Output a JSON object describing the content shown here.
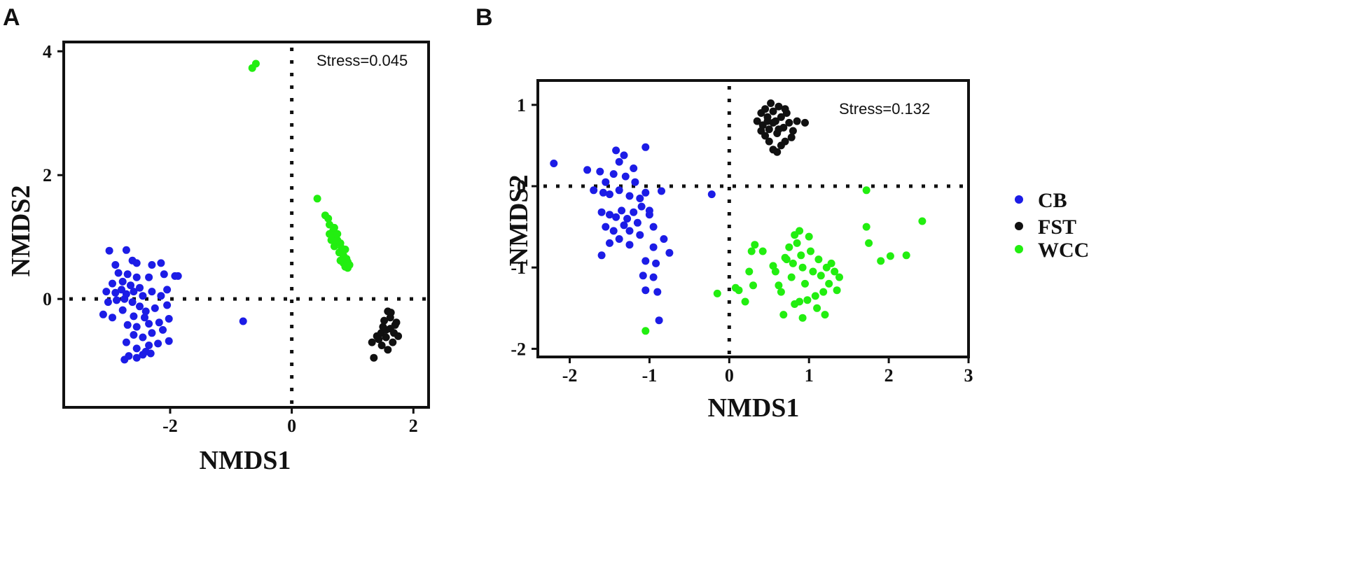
{
  "colors": {
    "CB": "#1c1ce6",
    "FST": "#111111",
    "WCC": "#22ee10"
  },
  "legend": [
    {
      "label": "CB",
      "group": "CB"
    },
    {
      "label": "FST",
      "group": "FST"
    },
    {
      "label": "WCC",
      "group": "WCC"
    }
  ],
  "chart_data": [
    {
      "type": "scatter",
      "panel_label": "A",
      "xlabel": "NMDS1",
      "ylabel": "NMDS2",
      "xlim": [
        -3.75,
        2.25
      ],
      "ylim": [
        -1.75,
        4.15
      ],
      "xticks": [
        -2,
        0,
        2
      ],
      "xtick_labels": [
        "-2",
        "0",
        "2"
      ],
      "yticks": [
        0,
        2,
        4
      ],
      "ytick_labels": [
        "0",
        "2",
        "4"
      ],
      "annotation": "Stress=0.045",
      "reference_lines": {
        "x": 0,
        "y": 0
      },
      "series": [
        {
          "name": "CB",
          "points": [
            [
              -3.0,
              0.78
            ],
            [
              -2.72,
              0.79
            ],
            [
              -2.9,
              0.55
            ],
            [
              -2.62,
              0.62
            ],
            [
              -2.55,
              0.58
            ],
            [
              -2.3,
              0.55
            ],
            [
              -2.15,
              0.58
            ],
            [
              -2.85,
              0.42
            ],
            [
              -2.7,
              0.4
            ],
            [
              -2.55,
              0.35
            ],
            [
              -2.35,
              0.35
            ],
            [
              -2.1,
              0.4
            ],
            [
              -1.87,
              0.37
            ],
            [
              -1.92,
              0.37
            ],
            [
              -2.95,
              0.25
            ],
            [
              -2.78,
              0.28
            ],
            [
              -2.65,
              0.22
            ],
            [
              -2.5,
              0.18
            ],
            [
              -3.05,
              0.12
            ],
            [
              -2.9,
              0.1
            ],
            [
              -2.8,
              0.15
            ],
            [
              -2.72,
              0.08
            ],
            [
              -2.6,
              0.12
            ],
            [
              -2.45,
              0.05
            ],
            [
              -2.3,
              0.12
            ],
            [
              -2.15,
              0.05
            ],
            [
              -2.05,
              0.15
            ],
            [
              -3.02,
              -0.05
            ],
            [
              -2.88,
              -0.02
            ],
            [
              -2.75,
              0.0
            ],
            [
              -2.62,
              -0.05
            ],
            [
              -2.5,
              -0.12
            ],
            [
              -3.1,
              -0.25
            ],
            [
              -2.95,
              -0.3
            ],
            [
              -2.78,
              -0.18
            ],
            [
              -2.6,
              -0.28
            ],
            [
              -2.4,
              -0.2
            ],
            [
              -2.25,
              -0.15
            ],
            [
              -2.05,
              -0.1
            ],
            [
              -2.42,
              -0.3
            ],
            [
              -2.7,
              -0.42
            ],
            [
              -2.55,
              -0.45
            ],
            [
              -2.35,
              -0.4
            ],
            [
              -2.18,
              -0.38
            ],
            [
              -2.02,
              -0.32
            ],
            [
              -2.6,
              -0.58
            ],
            [
              -2.45,
              -0.62
            ],
            [
              -2.3,
              -0.55
            ],
            [
              -2.12,
              -0.5
            ],
            [
              -2.02,
              -0.68
            ],
            [
              -2.72,
              -0.7
            ],
            [
              -2.55,
              -0.8
            ],
            [
              -2.35,
              -0.75
            ],
            [
              -2.2,
              -0.72
            ],
            [
              -2.68,
              -0.92
            ],
            [
              -2.45,
              -0.9
            ],
            [
              -2.32,
              -0.88
            ],
            [
              -2.75,
              -0.98
            ],
            [
              -2.55,
              -0.95
            ],
            [
              -2.4,
              -0.85
            ],
            [
              -0.8,
              -0.36
            ]
          ]
        },
        {
          "name": "FST",
          "points": [
            [
              1.35,
              -0.95
            ],
            [
              1.32,
              -0.7
            ],
            [
              1.4,
              -0.6
            ],
            [
              1.47,
              -0.55
            ],
            [
              1.55,
              -0.5
            ],
            [
              1.62,
              -0.48
            ],
            [
              1.7,
              -0.42
            ],
            [
              1.58,
              -0.2
            ],
            [
              1.52,
              -0.35
            ],
            [
              1.62,
              -0.3
            ],
            [
              1.68,
              -0.55
            ],
            [
              1.75,
              -0.6
            ],
            [
              1.48,
              -0.75
            ],
            [
              1.58,
              -0.82
            ],
            [
              1.66,
              -0.7
            ],
            [
              1.43,
              -0.65
            ],
            [
              1.55,
              -0.62
            ],
            [
              1.63,
              -0.22
            ],
            [
              1.72,
              -0.38
            ],
            [
              1.5,
              -0.45
            ]
          ]
        },
        {
          "name": "WCC",
          "points": [
            [
              -0.65,
              3.73
            ],
            [
              -0.59,
              3.8
            ],
            [
              0.42,
              1.62
            ],
            [
              0.55,
              1.35
            ],
            [
              0.6,
              1.3
            ],
            [
              0.62,
              1.2
            ],
            [
              0.68,
              1.1
            ],
            [
              0.7,
              1.15
            ],
            [
              0.62,
              1.05
            ],
            [
              0.72,
              1.0
            ],
            [
              0.75,
              0.95
            ],
            [
              0.8,
              0.9
            ],
            [
              0.7,
              0.85
            ],
            [
              0.82,
              0.82
            ],
            [
              0.88,
              0.8
            ],
            [
              0.85,
              0.7
            ],
            [
              0.78,
              0.75
            ],
            [
              0.9,
              0.65
            ],
            [
              0.92,
              0.6
            ],
            [
              0.85,
              0.58
            ],
            [
              0.88,
              0.52
            ],
            [
              0.92,
              0.5
            ],
            [
              0.8,
              0.62
            ],
            [
              0.65,
              0.95
            ],
            [
              0.75,
              1.05
            ],
            [
              0.95,
              0.55
            ]
          ]
        }
      ]
    },
    {
      "type": "scatter",
      "panel_label": "B",
      "xlabel": "NMDS1",
      "ylabel": "NMDS2",
      "xlim": [
        -2.4,
        3.0
      ],
      "ylim": [
        -2.1,
        1.3
      ],
      "xticks": [
        -2,
        -1,
        0,
        1,
        2,
        3
      ],
      "xtick_labels": [
        "-2",
        "-1",
        "0",
        "1",
        "2",
        "3"
      ],
      "yticks": [
        -2,
        -1,
        0,
        1
      ],
      "ytick_labels": [
        "-2",
        "-1",
        "0",
        "1"
      ],
      "annotation": "Stress=0.132",
      "reference_lines": {
        "x": 0,
        "y": 0
      },
      "series": [
        {
          "name": "CB",
          "points": [
            [
              -2.2,
              0.28
            ],
            [
              -1.78,
              0.2
            ],
            [
              -1.42,
              0.44
            ],
            [
              -1.38,
              0.3
            ],
            [
              -1.2,
              0.22
            ],
            [
              -1.05,
              0.48
            ],
            [
              -1.62,
              0.18
            ],
            [
              -1.55,
              0.05
            ],
            [
              -1.45,
              0.15
            ],
            [
              -1.3,
              0.12
            ],
            [
              -1.18,
              0.05
            ],
            [
              -1.58,
              -0.08
            ],
            [
              -1.5,
              -0.1
            ],
            [
              -1.38,
              -0.05
            ],
            [
              -1.25,
              -0.12
            ],
            [
              -1.12,
              -0.15
            ],
            [
              -1.05,
              -0.08
            ],
            [
              -0.85,
              -0.06
            ],
            [
              -1.6,
              -0.32
            ],
            [
              -1.5,
              -0.35
            ],
            [
              -1.42,
              -0.38
            ],
            [
              -1.35,
              -0.3
            ],
            [
              -1.28,
              -0.4
            ],
            [
              -1.2,
              -0.32
            ],
            [
              -1.1,
              -0.25
            ],
            [
              -1.0,
              -0.35
            ],
            [
              -1.55,
              -0.5
            ],
            [
              -1.45,
              -0.55
            ],
            [
              -1.32,
              -0.48
            ],
            [
              -1.25,
              -0.55
            ],
            [
              -1.15,
              -0.45
            ],
            [
              -1.0,
              -0.3
            ],
            [
              -0.95,
              -0.5
            ],
            [
              -1.5,
              -0.7
            ],
            [
              -1.38,
              -0.65
            ],
            [
              -1.25,
              -0.72
            ],
            [
              -1.12,
              -0.6
            ],
            [
              -0.95,
              -0.75
            ],
            [
              -0.82,
              -0.65
            ],
            [
              -0.75,
              -0.82
            ],
            [
              -1.6,
              -0.85
            ],
            [
              -1.05,
              -0.92
            ],
            [
              -0.92,
              -0.95
            ],
            [
              -1.08,
              -1.1
            ],
            [
              -0.95,
              -1.12
            ],
            [
              -1.05,
              -1.28
            ],
            [
              -0.9,
              -1.3
            ],
            [
              -0.88,
              -1.65
            ],
            [
              -0.22,
              -0.1
            ],
            [
              -1.7,
              -0.05
            ],
            [
              -1.32,
              0.38
            ]
          ]
        },
        {
          "name": "FST",
          "points": [
            [
              0.35,
              0.8
            ],
            [
              0.4,
              0.9
            ],
            [
              0.42,
              0.75
            ],
            [
              0.45,
              0.95
            ],
            [
              0.48,
              0.85
            ],
            [
              0.5,
              0.7
            ],
            [
              0.52,
              1.02
            ],
            [
              0.55,
              0.92
            ],
            [
              0.58,
              0.8
            ],
            [
              0.6,
              0.65
            ],
            [
              0.62,
              0.98
            ],
            [
              0.65,
              0.85
            ],
            [
              0.68,
              0.72
            ],
            [
              0.7,
              0.55
            ],
            [
              0.72,
              0.9
            ],
            [
              0.75,
              0.78
            ],
            [
              0.78,
              0.6
            ],
            [
              0.8,
              0.68
            ],
            [
              0.85,
              0.8
            ],
            [
              0.5,
              0.55
            ],
            [
              0.55,
              0.45
            ],
            [
              0.6,
              0.42
            ],
            [
              0.4,
              0.68
            ],
            [
              0.45,
              0.62
            ],
            [
              0.65,
              0.5
            ],
            [
              0.7,
              0.95
            ],
            [
              0.95,
              0.78
            ],
            [
              0.55,
              0.78
            ],
            [
              0.62,
              0.7
            ],
            [
              0.48,
              0.8
            ]
          ]
        },
        {
          "name": "WCC",
          "points": [
            [
              -0.15,
              -1.32
            ],
            [
              0.08,
              -1.25
            ],
            [
              0.12,
              -1.28
            ],
            [
              0.2,
              -1.42
            ],
            [
              0.25,
              -1.05
            ],
            [
              0.3,
              -1.22
            ],
            [
              0.32,
              -0.72
            ],
            [
              0.28,
              -0.8
            ],
            [
              0.42,
              -0.8
            ],
            [
              0.55,
              -0.98
            ],
            [
              0.58,
              -1.05
            ],
            [
              0.62,
              -1.22
            ],
            [
              0.65,
              -1.3
            ],
            [
              0.68,
              -1.58
            ],
            [
              0.7,
              -0.88
            ],
            [
              0.75,
              -0.75
            ],
            [
              0.78,
              -1.12
            ],
            [
              0.8,
              -0.95
            ],
            [
              0.82,
              -0.6
            ],
            [
              0.85,
              -0.7
            ],
            [
              0.88,
              -0.55
            ],
            [
              0.9,
              -0.85
            ],
            [
              0.92,
              -1.0
            ],
            [
              0.95,
              -1.2
            ],
            [
              0.98,
              -1.4
            ],
            [
              1.0,
              -0.62
            ],
            [
              1.02,
              -0.8
            ],
            [
              1.05,
              -1.05
            ],
            [
              1.08,
              -1.35
            ],
            [
              1.1,
              -1.5
            ],
            [
              1.12,
              -0.9
            ],
            [
              1.15,
              -1.1
            ],
            [
              1.18,
              -1.3
            ],
            [
              1.2,
              -1.58
            ],
            [
              1.22,
              -1.0
            ],
            [
              1.25,
              -1.2
            ],
            [
              1.28,
              -0.95
            ],
            [
              1.32,
              -1.05
            ],
            [
              1.35,
              -1.28
            ],
            [
              1.38,
              -1.12
            ],
            [
              0.82,
              -1.45
            ],
            [
              0.88,
              -1.42
            ],
            [
              1.72,
              -0.05
            ],
            [
              1.72,
              -0.5
            ],
            [
              1.75,
              -0.7
            ],
            [
              1.9,
              -0.92
            ],
            [
              2.02,
              -0.86
            ],
            [
              2.22,
              -0.85
            ],
            [
              2.42,
              -0.43
            ],
            [
              -1.05,
              -1.78
            ],
            [
              0.92,
              -1.62
            ],
            [
              0.72,
              -0.9
            ]
          ]
        }
      ]
    }
  ]
}
